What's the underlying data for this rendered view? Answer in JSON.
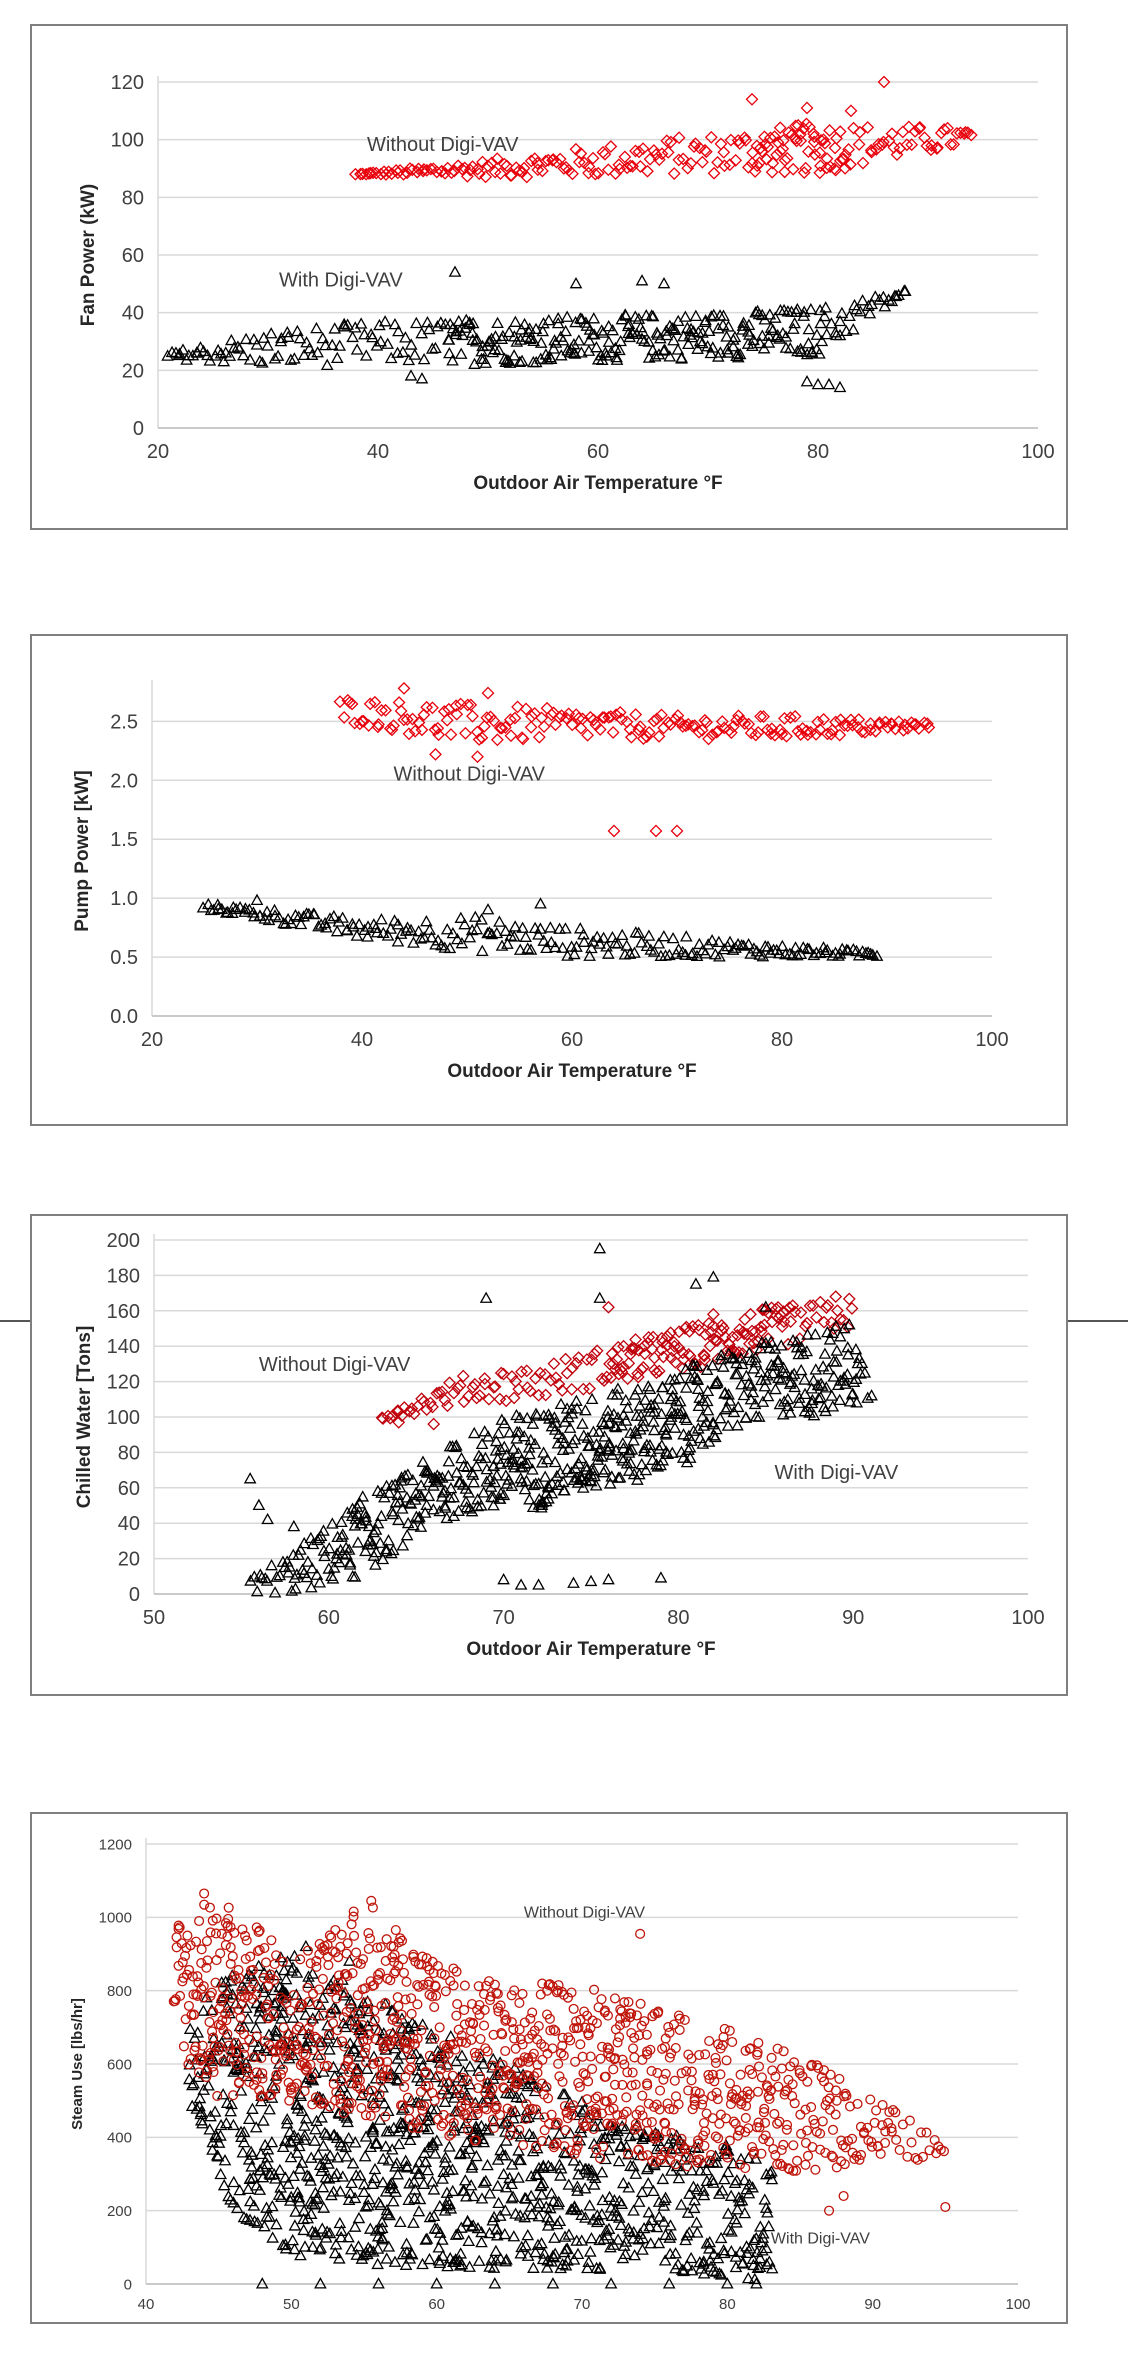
{
  "chart_data": [
    {
      "type": "scatter",
      "xlabel": "Outdoor Air Temperature °F",
      "ylabel": "Fan Power (kW)",
      "xlim": [
        20,
        100
      ],
      "ylim": [
        0,
        120
      ],
      "xticks": [
        20,
        40,
        60,
        80,
        100
      ],
      "yticks": [
        0,
        20,
        40,
        60,
        80,
        100,
        120
      ],
      "grid": true,
      "annotations": [
        {
          "text": "Without Digi-VAV",
          "x": 39,
          "y": 96
        },
        {
          "text": "With Digi-VAV",
          "x": 31,
          "y": 49
        }
      ],
      "series": [
        {
          "marker": "diamond",
          "color": "#e8000b",
          "band": [
            [
              38,
              88,
              88
            ],
            [
              50,
              87,
              93
            ],
            [
              60,
              87,
              98
            ],
            [
              70,
              88,
              102
            ],
            [
              80,
              88,
              106
            ],
            [
              94,
              98,
              104
            ]
          ],
          "outliers": [
            [
              86,
              120
            ],
            [
              74,
              114
            ],
            [
              79,
              111
            ],
            [
              83,
              110
            ]
          ]
        },
        {
          "marker": "triangle",
          "color": "#000000",
          "band": [
            [
              21,
              24,
              26
            ],
            [
              30,
              21,
              34
            ],
            [
              40,
              22,
              37
            ],
            [
              50,
              22,
              38
            ],
            [
              60,
              23,
              39
            ],
            [
              70,
              24,
              40
            ],
            [
              80,
              25,
              42
            ],
            [
              88,
              46,
              48
            ]
          ],
          "outliers": [
            [
              47,
              54
            ],
            [
              43,
              18
            ],
            [
              44,
              17
            ],
            [
              79,
              16
            ],
            [
              80,
              15
            ],
            [
              81,
              15
            ],
            [
              82,
              14
            ],
            [
              64,
              51
            ],
            [
              66,
              50
            ],
            [
              58,
              50
            ],
            [
              82,
              32
            ]
          ]
        }
      ]
    },
    {
      "type": "scatter",
      "xlabel": "Outdoor Air Temperature °F",
      "ylabel": "Pump Power [kW]",
      "xlim": [
        20,
        100
      ],
      "ylim": [
        0,
        2.8
      ],
      "xticks": [
        20,
        40,
        60,
        80,
        100
      ],
      "yticks": [
        0.0,
        0.5,
        1.0,
        1.5,
        2.0,
        2.5
      ],
      "grid": true,
      "annotations": [
        {
          "text": "Without Digi-VAV",
          "x": 43,
          "y": 2.0
        }
      ],
      "series": [
        {
          "marker": "diamond",
          "color": "#e8000b",
          "band": [
            [
              38,
              2.5,
              2.7
            ],
            [
              50,
              2.3,
              2.65
            ],
            [
              60,
              2.35,
              2.6
            ],
            [
              70,
              2.35,
              2.55
            ],
            [
              80,
              2.35,
              2.55
            ],
            [
              94,
              2.42,
              2.5
            ]
          ],
          "outliers": [
            [
              64,
              1.57
            ],
            [
              68,
              1.57
            ],
            [
              70,
              1.57
            ],
            [
              44,
              2.78
            ],
            [
              52,
              2.74
            ],
            [
              47,
              2.22
            ],
            [
              51,
              2.2
            ]
          ]
        },
        {
          "marker": "triangle",
          "color": "#000000",
          "band": [
            [
              25,
              0.9,
              0.95
            ],
            [
              30,
              0.82,
              0.92
            ],
            [
              40,
              0.65,
              0.82
            ],
            [
              50,
              0.55,
              0.85
            ],
            [
              60,
              0.5,
              0.75
            ],
            [
              70,
              0.5,
              0.68
            ],
            [
              80,
              0.5,
              0.6
            ],
            [
              89,
              0.5,
              0.55
            ]
          ],
          "outliers": [
            [
              30,
              0.98
            ],
            [
              57,
              0.95
            ],
            [
              52,
              0.9
            ]
          ]
        }
      ]
    },
    {
      "type": "scatter",
      "xlabel": "Outdoor Air Temperature °F",
      "ylabel": "Chilled Water [Tons]",
      "xlim": [
        50,
        100
      ],
      "ylim": [
        0,
        200
      ],
      "xticks": [
        50,
        60,
        70,
        80,
        90,
        100
      ],
      "yticks": [
        0,
        20,
        40,
        60,
        80,
        100,
        120,
        140,
        160,
        180,
        200
      ],
      "grid": true,
      "annotations": [
        {
          "text": "Without Digi-VAV",
          "x": 56,
          "y": 126
        },
        {
          "text": "With Digi-VAV",
          "x": 85.5,
          "y": 65
        }
      ],
      "series": [
        {
          "marker": "diamond",
          "color": "#c0000b",
          "band": [
            [
              63,
              98,
              102
            ],
            [
              68,
              108,
              125
            ],
            [
              72,
              110,
              130
            ],
            [
              76,
              118,
              140
            ],
            [
              80,
              125,
              150
            ],
            [
              84,
              135,
              160
            ],
            [
              90,
              150,
              168
            ]
          ],
          "outliers": [
            [
              76,
              162
            ],
            [
              82,
              158
            ],
            [
              89,
              168
            ],
            [
              64,
              97
            ],
            [
              66,
              96
            ]
          ]
        },
        {
          "marker": "triangle",
          "color": "#000000",
          "band": [
            [
              55.5,
              0,
              10
            ],
            [
              58,
              0,
              25
            ],
            [
              60,
              5,
              40
            ],
            [
              62,
              10,
              55
            ],
            [
              64,
              25,
              65
            ],
            [
              66,
              40,
              78
            ],
            [
              68,
              45,
              90
            ],
            [
              70,
              45,
              100
            ],
            [
              72,
              48,
              105
            ],
            [
              74,
              55,
              110
            ],
            [
              76,
              60,
              115
            ],
            [
              78,
              65,
              118
            ],
            [
              80,
              70,
              125
            ],
            [
              82,
              85,
              135
            ],
            [
              84,
              95,
              140
            ],
            [
              86,
              100,
              145
            ],
            [
              88,
              100,
              150
            ],
            [
              90,
              105,
              155
            ],
            [
              91,
              110,
              115
            ]
          ],
          "outliers": [
            [
              75.5,
              195
            ],
            [
              82,
              179
            ],
            [
              69,
              167
            ],
            [
              75.5,
              167
            ],
            [
              81,
              175
            ],
            [
              55.5,
              65
            ],
            [
              56,
              50
            ],
            [
              56.5,
              42
            ],
            [
              58,
              38
            ],
            [
              70,
              8
            ],
            [
              71,
              5
            ],
            [
              72,
              5
            ],
            [
              74,
              6
            ],
            [
              75,
              7
            ],
            [
              76,
              8
            ],
            [
              79,
              9
            ],
            [
              86,
              125
            ],
            [
              85,
              162
            ]
          ]
        }
      ]
    },
    {
      "type": "scatter",
      "xlabel": "Outdoor Air Temperature °F",
      "ylabel": "Steam Use [lbs/hr]",
      "xlim": [
        40,
        100
      ],
      "ylim": [
        0,
        1200
      ],
      "xticks": [
        40,
        50,
        60,
        70,
        80,
        90,
        100
      ],
      "yticks": [
        0,
        200,
        400,
        600,
        800,
        1000,
        1200
      ],
      "grid": true,
      "annotations": [
        {
          "text": "Without Digi-VAV",
          "x": 66,
          "y": 1000
        },
        {
          "text": "With Digi-VAV",
          "x": 83,
          "y": 110
        }
      ],
      "series": [
        {
          "marker": "triangle",
          "color": "#000000",
          "band": [
            [
              43,
              500,
              750
            ],
            [
              46,
              200,
              850
            ],
            [
              50,
              80,
              900
            ],
            [
              55,
              50,
              800
            ],
            [
              60,
              40,
              700
            ],
            [
              65,
              40,
              600
            ],
            [
              70,
              40,
              500
            ],
            [
              75,
              30,
              420
            ],
            [
              80,
              20,
              380
            ],
            [
              83,
              0,
              350
            ]
          ],
          "outliers": [
            [
              48,
              0
            ],
            [
              52,
              0
            ],
            [
              56,
              0
            ],
            [
              60,
              0
            ],
            [
              64,
              0
            ],
            [
              68,
              0
            ],
            [
              72,
              0
            ],
            [
              76,
              0
            ],
            [
              80,
              0
            ],
            [
              82,
              0
            ],
            [
              51,
              920
            ],
            [
              54,
              880
            ]
          ]
        },
        {
          "marker": "circle",
          "color": "#c0150b",
          "band": [
            [
              42,
              620,
              1000
            ],
            [
              45,
              500,
              1060
            ],
            [
              50,
              500,
              900
            ],
            [
              55,
              450,
              1050
            ],
            [
              60,
              400,
              880
            ],
            [
              65,
              380,
              820
            ],
            [
              70,
              350,
              820
            ],
            [
              75,
              320,
              750
            ],
            [
              80,
              320,
              700
            ],
            [
              85,
              300,
              620
            ],
            [
              90,
              330,
              520
            ],
            [
              95,
              340,
              380
            ]
          ],
          "outliers": [
            [
              44,
              1065
            ],
            [
              55.5,
              1045
            ],
            [
              74,
              955
            ],
            [
              88,
              240
            ],
            [
              95,
              210
            ],
            [
              87,
              200
            ]
          ]
        }
      ]
    }
  ]
}
